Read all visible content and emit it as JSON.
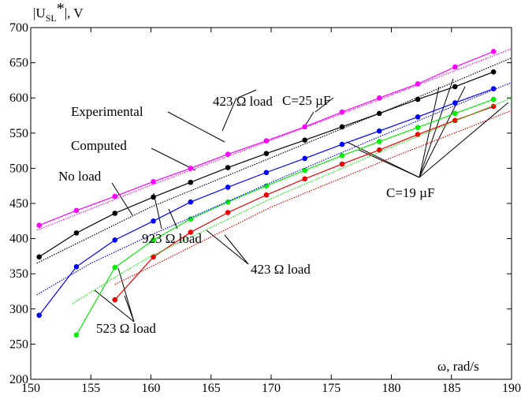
{
  "chart_data": {
    "type": "line",
    "ylabel": [
      "|U",
      "SL",
      "*",
      "|, V"
    ],
    "xlabel": "ω, rad/s",
    "xlim": [
      150,
      190
    ],
    "ylim": [
      200,
      700
    ],
    "xticks": [
      150,
      155,
      160,
      165,
      170,
      175,
      180,
      185,
      190
    ],
    "yticks": [
      200,
      250,
      300,
      350,
      400,
      450,
      500,
      550,
      600,
      650,
      700
    ],
    "series": [
      {
        "color": "#ff00ff",
        "style": "solid",
        "markers": true,
        "x": [
          150.7,
          153.8,
          157,
          160.2,
          163.3,
          166.4,
          169.6,
          172.8,
          175.9,
          179,
          182.2,
          185.3,
          188.5
        ],
        "values": [
          419,
          440,
          460,
          481,
          500,
          520,
          539,
          559,
          580,
          600,
          620,
          644,
          666
        ]
      },
      {
        "color": "#000000",
        "style": "solid",
        "markers": true,
        "x": [
          150.7,
          153.8,
          157,
          160.2,
          163.3,
          166.4,
          169.6,
          172.8,
          175.9,
          179,
          182.2,
          185.3,
          188.5
        ],
        "values": [
          374,
          408,
          436,
          459,
          480,
          501,
          521,
          540,
          559,
          578,
          598,
          616,
          637
        ]
      },
      {
        "color": "#0000ff",
        "style": "solid",
        "markers": true,
        "x": [
          150.7,
          153.8,
          157,
          160.2,
          163.3,
          166.4,
          169.6,
          172.8,
          175.9,
          179,
          182.2,
          185.3,
          188.5
        ],
        "values": [
          291,
          360,
          398,
          425,
          452,
          473,
          494,
          514,
          534,
          553,
          573,
          593,
          613
        ]
      },
      {
        "color": "#00ee00",
        "style": "solid",
        "markers": true,
        "x": [
          153.8,
          157,
          160.2,
          163.3,
          166.4,
          169.6,
          172.8,
          175.9,
          179,
          182.2,
          185.3,
          188.5
        ],
        "values": [
          263,
          359,
          398,
          428,
          452,
          475,
          497,
          518,
          538,
          558,
          578,
          598
        ]
      },
      {
        "color": "#ee0000",
        "style": "solid",
        "markers": true,
        "x": [
          157,
          160.2,
          163.3,
          166.4,
          169.6,
          172.8,
          175.9,
          179,
          182.2,
          185.3,
          188.5
        ],
        "values": [
          313,
          374,
          409,
          437,
          462,
          485,
          506,
          526,
          548,
          568,
          588
        ]
      },
      {
        "color": "#ff00ff",
        "style": "dotted",
        "markers": false,
        "x": [
          150.5,
          160,
          170,
          180,
          190
        ],
        "values": [
          412,
          476,
          540,
          604,
          670
        ]
      },
      {
        "color": "#000000",
        "style": "dotted",
        "markers": false,
        "x": [
          150.5,
          160,
          170,
          180,
          190
        ],
        "values": [
          365,
          445,
          515,
          585,
          657
        ]
      },
      {
        "color": "#0000ff",
        "style": "dotted",
        "markers": false,
        "x": [
          150.5,
          155,
          160,
          170,
          180,
          190
        ],
        "values": [
          320,
          365,
          405,
          480,
          552,
          622
        ]
      },
      {
        "color": "#00ee00",
        "style": "dotted",
        "markers": false,
        "x": [
          153.5,
          157,
          160,
          170,
          180,
          190
        ],
        "values": [
          308,
          345,
          375,
          457,
          530,
          600
        ]
      },
      {
        "color": "#ee0000",
        "style": "dotted",
        "markers": false,
        "x": [
          157,
          160,
          170,
          180,
          190
        ],
        "values": [
          335,
          360,
          445,
          515,
          582
        ]
      }
    ],
    "annotations": [
      "C=25 µF",
      "423 Ω load",
      "Experimental",
      "Computed",
      "No load",
      "C=19 µF",
      "923 Ω load",
      "423 Ω load",
      "523 Ω load"
    ]
  }
}
